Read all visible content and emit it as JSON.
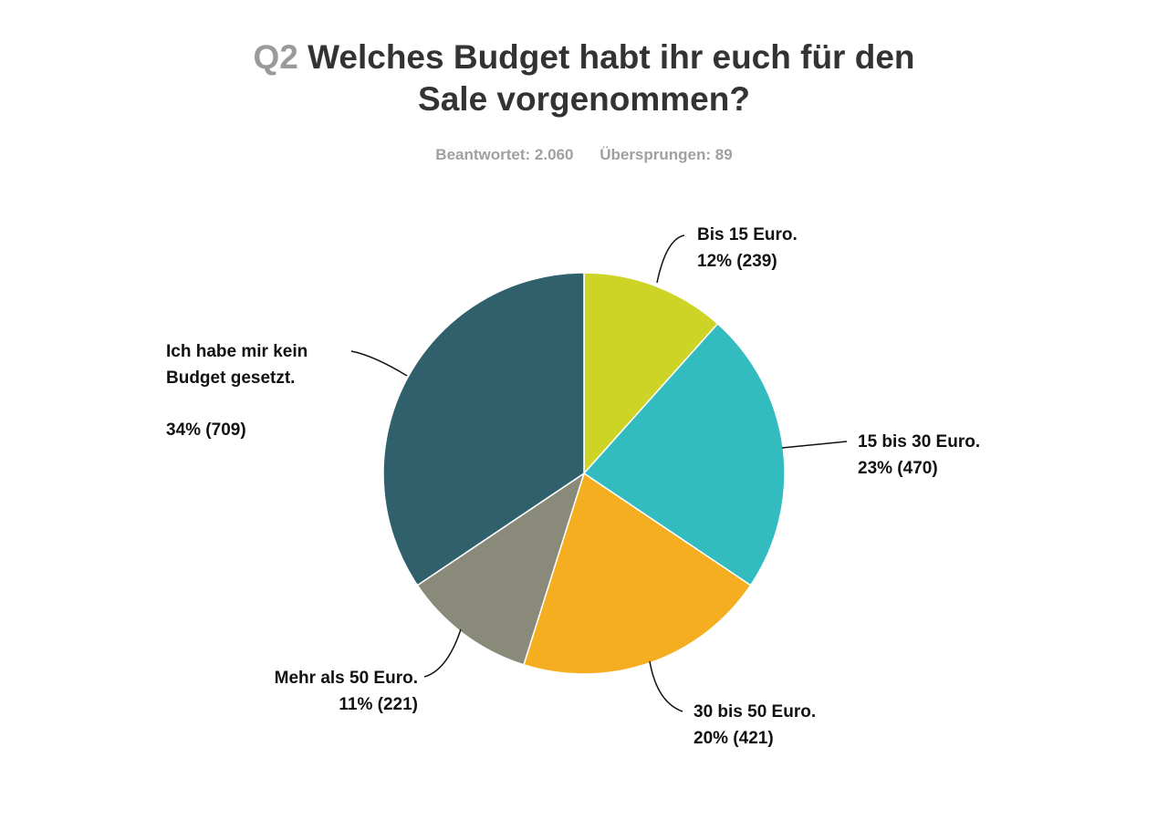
{
  "header": {
    "question_number": "Q2",
    "question_text": "Welches Budget habt ihr euch für den Sale vorgenommen?",
    "answered_label": "Beantwortet: 2.060",
    "skipped_label": "Übersprungen: 89"
  },
  "chart_data": {
    "type": "pie",
    "title": "Welches Budget habt ihr euch für den Sale vorgenommen?",
    "slices": [
      {
        "label": "Bis 15 Euro.",
        "value": 239,
        "percent_label": "12% (239)",
        "color": "#cdd426"
      },
      {
        "label": "15 bis 30 Euro.",
        "value": 470,
        "percent_label": "23% (470)",
        "color": "#33bcc0"
      },
      {
        "label": "30 bis 50 Euro.",
        "value": 421,
        "percent_label": "20% (421)",
        "color": "#f5ae20"
      },
      {
        "label": "Mehr als 50 Euro.",
        "value": 221,
        "percent_label": "11% (221)",
        "color": "#8a8a7a"
      },
      {
        "label": "Ich habe mir kein Budget gesetzt.",
        "value": 709,
        "percent_label": "34% (709)",
        "color": "#2f606c"
      }
    ]
  }
}
